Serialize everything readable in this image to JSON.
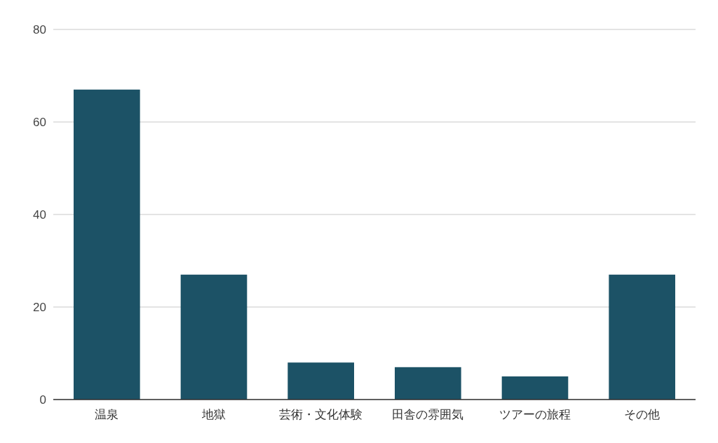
{
  "chart_data": {
    "type": "bar",
    "categories": [
      "温泉",
      "地獄",
      "芸術・文化体験",
      "田舎の雰囲気",
      "ツアーの旅程",
      "その他"
    ],
    "values": [
      67,
      27,
      8,
      7,
      5,
      27
    ],
    "color": "#1c5266",
    "ylim": [
      0,
      80
    ],
    "yticks": [
      0,
      20,
      40,
      60,
      80
    ],
    "grid": "y"
  }
}
